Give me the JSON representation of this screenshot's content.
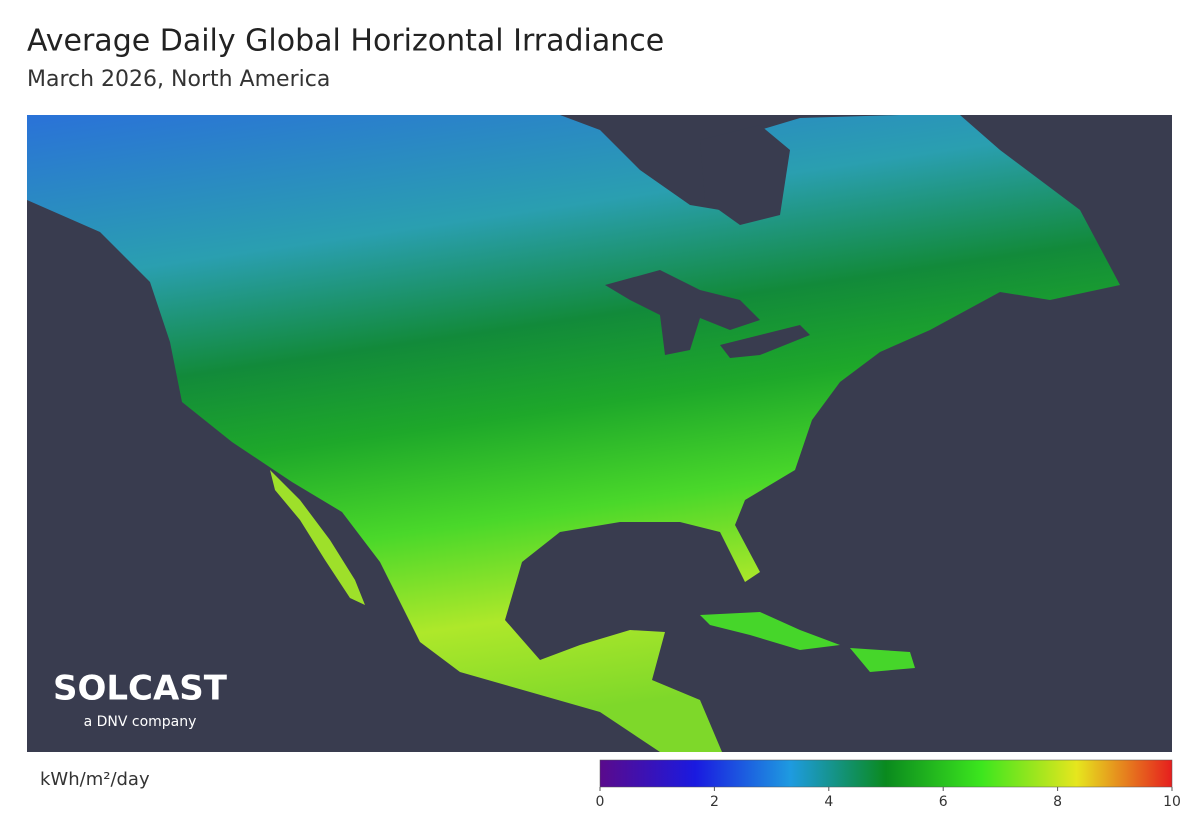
{
  "header": {
    "title": "Average Daily Global Horizontal Irradiance",
    "subtitle": "March 2026, North America"
  },
  "legend": {
    "unit": "kWh/m²/day",
    "range": [
      0,
      10
    ],
    "ticks": [
      0,
      2,
      4,
      6,
      8,
      10
    ],
    "colors": [
      "#5a0a8c",
      "#1a1ae0",
      "#1e9be0",
      "#0a8a1e",
      "#3ce61e",
      "#e6e61e",
      "#e61e1e"
    ]
  },
  "logo": {
    "name": "SOLCAST",
    "tagline": "a DNV company"
  }
}
